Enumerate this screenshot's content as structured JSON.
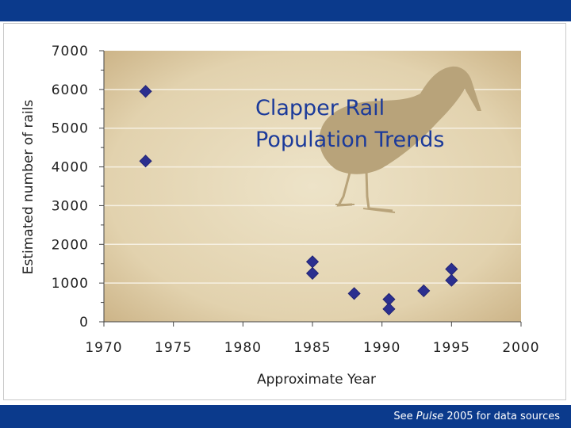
{
  "source_note": {
    "prefix": "See",
    "italic": "Pulse",
    "suffix": "2005 for data sources"
  },
  "chart_data": {
    "type": "scatter",
    "title_lines": [
      "Clapper Rail",
      "Population Trends"
    ],
    "xlabel": "Approximate Year",
    "ylabel": "Estimated number of rails",
    "xlim": [
      1970,
      2000
    ],
    "ylim": [
      0,
      7000
    ],
    "xticks": [
      "1970",
      "1975",
      "1980",
      "1985",
      "1990",
      "1995",
      "2000"
    ],
    "yticks": [
      "0",
      "1000",
      "2000",
      "3000",
      "4000",
      "5000",
      "6000",
      "7000"
    ],
    "grid": "horizontal",
    "marker_color": "#2b2f8f",
    "background_color": "#e4d6b4",
    "points": [
      {
        "x": 1973,
        "y": 5950
      },
      {
        "x": 1973,
        "y": 4150
      },
      {
        "x": 1985,
        "y": 1550
      },
      {
        "x": 1985,
        "y": 1250
      },
      {
        "x": 1988,
        "y": 730
      },
      {
        "x": 1990.5,
        "y": 580
      },
      {
        "x": 1990.5,
        "y": 330
      },
      {
        "x": 1993,
        "y": 800
      },
      {
        "x": 1995,
        "y": 1360
      },
      {
        "x": 1995,
        "y": 1070
      }
    ]
  }
}
